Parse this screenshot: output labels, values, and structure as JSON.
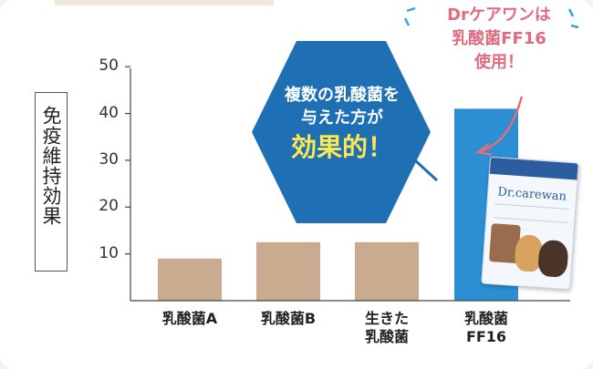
{
  "chart_data": {
    "type": "bar",
    "ylabel": "免疫維持効果",
    "yticks": [
      10,
      20,
      30,
      40,
      50
    ],
    "ylim": [
      0,
      55
    ],
    "categories": [
      {
        "lines": [
          "乳酸菌A"
        ]
      },
      {
        "lines": [
          "乳酸菌B"
        ]
      },
      {
        "lines": [
          "生きた",
          "乳酸菌"
        ]
      },
      {
        "lines": [
          "乳酸菌",
          "FF16"
        ]
      }
    ],
    "values": [
      9,
      12.5,
      12.5,
      41
    ],
    "colors": [
      "#c9ab90",
      "#c9ab90",
      "#c9ab90",
      "#2c8fd3"
    ],
    "grid": false,
    "annotations": {
      "hexagon": {
        "line1": "複数の乳酸菌を",
        "line2": "与えた方が",
        "emphasis": "効果的！"
      },
      "callout": {
        "line1": "Drケアワンは",
        "line2": "乳酸菌FF16",
        "line3": "使用！"
      }
    }
  },
  "product": {
    "brand": "Dr.carewan",
    "icon": "product-package-with-dogs"
  },
  "colors": {
    "hexagon": "#1f6fb5",
    "callout": "#e06c80",
    "background": "#f7f1ea"
  }
}
